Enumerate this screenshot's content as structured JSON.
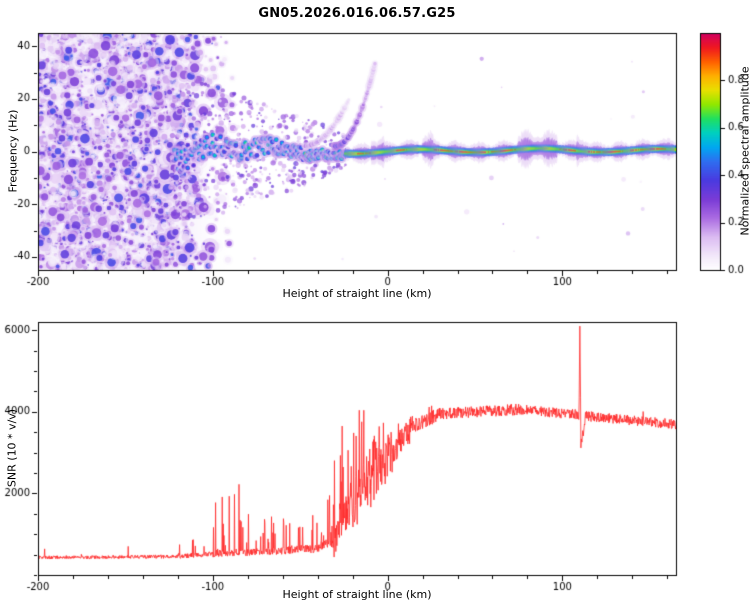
{
  "title": "GN05.2026.016.06.57.G25",
  "chart_data": [
    {
      "type": "heatmap",
      "panel": "top",
      "title": "GN05.2026.016.06.57.G25",
      "xlabel": "Height of straight line (km)",
      "ylabel": "Frequency (Hz)",
      "xlim": [
        -200,
        165
      ],
      "ylim": [
        -45,
        45
      ],
      "xticks_major": [
        -200,
        -100,
        0,
        100
      ],
      "xtick_minor_step": 20,
      "yticks_major": [
        -40,
        -20,
        0,
        20,
        40
      ],
      "ytick_minor_step": 10,
      "colorbar": {
        "label": "Normalized spectral amplitude",
        "range": [
          0,
          1
        ],
        "ticks": [
          0,
          0.2,
          0.4,
          0.6,
          0.8
        ],
        "stops": [
          [
            0,
            "#ffffff"
          ],
          [
            0.06,
            "#f3e9fa"
          ],
          [
            0.14,
            "#dcbcf2"
          ],
          [
            0.22,
            "#ab6ce2"
          ],
          [
            0.3,
            "#7a3bd6"
          ],
          [
            0.38,
            "#4a3ae0"
          ],
          [
            0.46,
            "#2e6ef0"
          ],
          [
            0.52,
            "#00a8f0"
          ],
          [
            0.58,
            "#00d0c0"
          ],
          [
            0.64,
            "#20e060"
          ],
          [
            0.7,
            "#90e800"
          ],
          [
            0.76,
            "#e8e000"
          ],
          [
            0.82,
            "#ffb000"
          ],
          [
            0.88,
            "#ff6000"
          ],
          [
            0.94,
            "#f01820"
          ],
          [
            1,
            "#d00060"
          ]
        ]
      },
      "features": {
        "noise_region_end_km": -122,
        "noise_fade_end_km": -90,
        "signal_band_center_hz": 0,
        "signal_emerge_km": -122,
        "chirp_arcs": [
          {
            "x0": -30,
            "x1": -7,
            "y0": 2,
            "y1": 34
          },
          {
            "x0": -48,
            "x1": -22,
            "y0": 2,
            "y1": 20
          }
        ],
        "red_core_segments": [
          [
            -17,
            -4
          ],
          [
            5,
            12
          ],
          [
            27,
            75
          ],
          [
            98,
            108
          ],
          [
            115,
            160
          ]
        ],
        "purple_bulges": [
          [
            -9,
            -2
          ],
          [
            20,
            26
          ],
          [
            75,
            97
          ],
          [
            108,
            115
          ]
        ]
      }
    },
    {
      "type": "line",
      "panel": "bottom",
      "xlabel": "Height of straight line (km)",
      "ylabel": "SNR (10 * v/v)",
      "xlim": [
        -200,
        165
      ],
      "ylim": [
        0,
        6200
      ],
      "xticks_major": [
        -200,
        -100,
        0,
        100
      ],
      "xtick_minor_step": 20,
      "yticks_major": [
        2000,
        4000,
        6000
      ],
      "ytick_minor_step": 500,
      "color": "#ff2a2a",
      "segments": [
        {
          "x0": -200,
          "x1": -150,
          "base": [
            430,
            440
          ],
          "amp": 40,
          "spike_p": 0.012,
          "spike_max": 260
        },
        {
          "x0": -150,
          "x1": -120,
          "base": [
            440,
            455
          ],
          "amp": 45,
          "spike_p": 0.015,
          "spike_max": 300
        },
        {
          "x0": -120,
          "x1": -100,
          "base": [
            455,
            520
          ],
          "amp": 60,
          "spike_p": 0.05,
          "spike_max": 420
        },
        {
          "x0": -100,
          "x1": -84,
          "base": [
            520,
            560
          ],
          "amp": 85,
          "spike_p": 0.22,
          "spike_max": 1750
        },
        {
          "x0": -84,
          "x1": -60,
          "base": [
            545,
            590
          ],
          "amp": 85,
          "spike_p": 0.15,
          "spike_max": 900
        },
        {
          "x0": -60,
          "x1": -44,
          "base": [
            590,
            650
          ],
          "amp": 95,
          "spike_p": 0.18,
          "spike_max": 850
        },
        {
          "x0": -44,
          "x1": -31,
          "base": [
            650,
            800
          ],
          "amp": 130,
          "spike_p": 0.25,
          "spike_max": 1250
        },
        {
          "x0": -31,
          "x1": -19,
          "base": [
            850,
            1700
          ],
          "amp": 480,
          "spike_p": 0.4,
          "spike_max": 2300
        },
        {
          "x0": -19,
          "x1": -7,
          "base": [
            1700,
            2500
          ],
          "amp": 700,
          "spike_p": 0.35,
          "spike_max": 1700
        },
        {
          "x0": -7,
          "x1": 3,
          "base": [
            2500,
            3050
          ],
          "amp": 600,
          "spike_p": 0.25,
          "spike_max": 1050
        },
        {
          "x0": 3,
          "x1": 15,
          "base": [
            3050,
            3650
          ],
          "amp": 330,
          "spike_p": 0.15,
          "spike_max": 500
        },
        {
          "x0": 15,
          "x1": 30,
          "base": [
            3650,
            3950
          ],
          "amp": 170,
          "spike_p": 0.05,
          "spike_max": 250
        },
        {
          "x0": 30,
          "x1": 75,
          "base": [
            3950,
            4060
          ],
          "amp": 140,
          "spike_p": 0.02,
          "spike_max": 180
        },
        {
          "x0": 75,
          "x1": 108,
          "base": [
            4060,
            3930
          ],
          "amp": 125,
          "spike_p": 0.02,
          "spike_max": 160
        },
        {
          "x0": 108,
          "x1": 112,
          "base": [
            3930,
            3900
          ],
          "amp": 110,
          "spike_p": 0,
          "spike_max": 0
        },
        {
          "x0": 112,
          "x1": 165,
          "base": [
            3900,
            3690
          ],
          "amp": 125,
          "spike_p": 0.02,
          "spike_max": 150
        }
      ],
      "spike": {
        "x": 110,
        "peak": 6100,
        "post_dip": 3150
      }
    }
  ]
}
